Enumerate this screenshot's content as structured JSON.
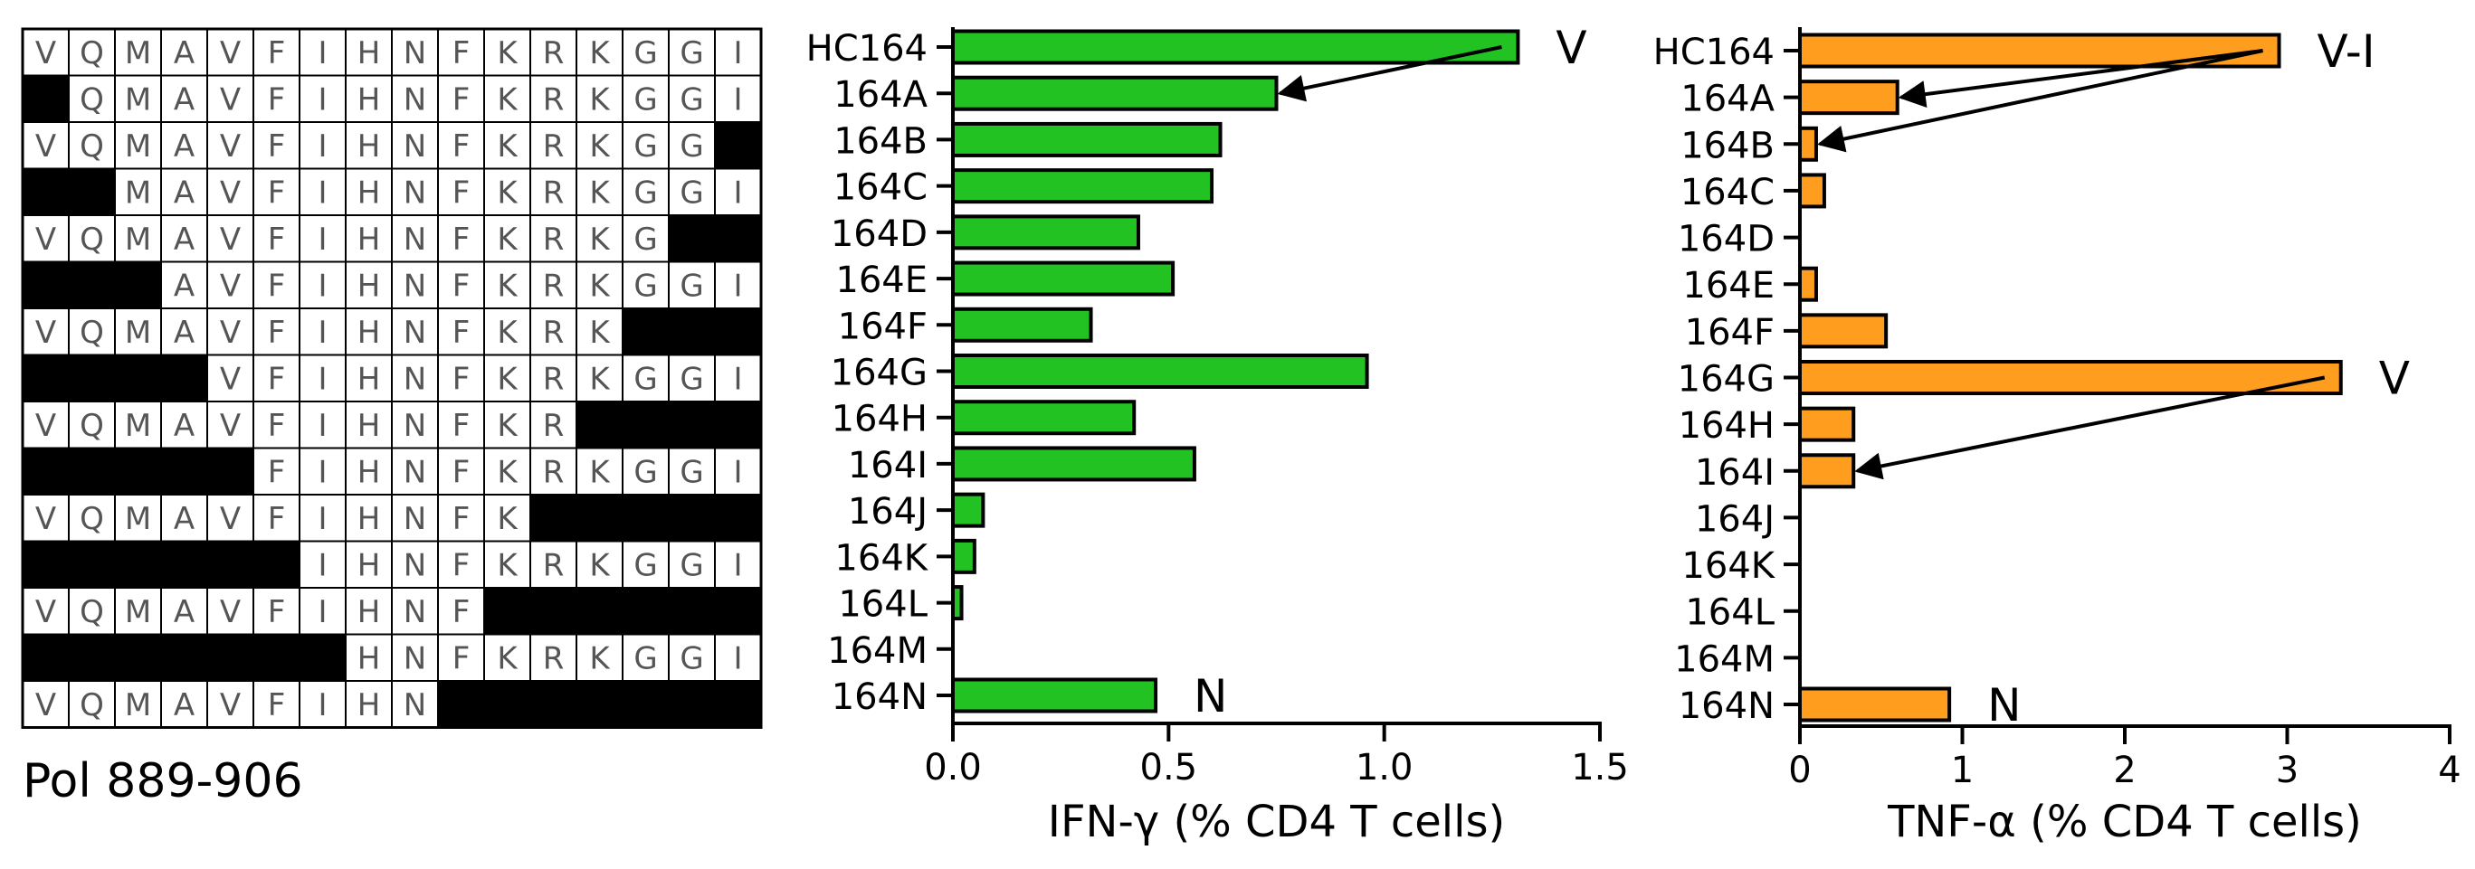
{
  "sequence_grid": {
    "caption": "Pol 889-906",
    "residues": [
      "V",
      "Q",
      "M",
      "A",
      "V",
      "F",
      "I",
      "H",
      "N",
      "F",
      "K",
      "R",
      "K",
      "G",
      "G",
      "I"
    ],
    "peptides": [
      {
        "start": 0,
        "end": 15
      },
      {
        "start": 1,
        "end": 15
      },
      {
        "start": 0,
        "end": 14
      },
      {
        "start": 2,
        "end": 15
      },
      {
        "start": 0,
        "end": 13
      },
      {
        "start": 3,
        "end": 15
      },
      {
        "start": 0,
        "end": 12
      },
      {
        "start": 4,
        "end": 15
      },
      {
        "start": 0,
        "end": 11
      },
      {
        "start": 5,
        "end": 15
      },
      {
        "start": 0,
        "end": 10
      },
      {
        "start": 6,
        "end": 15
      },
      {
        "start": 0,
        "end": 9
      },
      {
        "start": 7,
        "end": 15
      },
      {
        "start": 0,
        "end": 8
      }
    ]
  },
  "chart_data": [
    {
      "type": "bar",
      "orientation": "horizontal",
      "categories": [
        "HC164",
        "164A",
        "164B",
        "164C",
        "164D",
        "164E",
        "164F",
        "164G",
        "164H",
        "164I",
        "164J",
        "164K",
        "164L",
        "164M",
        "164N"
      ],
      "values": [
        1.31,
        0.75,
        0.62,
        0.6,
        0.43,
        0.51,
        0.32,
        0.96,
        0.42,
        0.56,
        0.07,
        0.05,
        0.02,
        0,
        0.47
      ],
      "xlabel": "IFN-γ (% CD4 T cells)",
      "xlim": [
        0,
        1.5
      ],
      "xticks": [
        "0.0",
        "0.5",
        "1.0",
        "1.5"
      ],
      "bar_color": "#22c222",
      "annotations": [
        {
          "text": "V",
          "category": "HC164"
        },
        {
          "text": "N",
          "category": "164N"
        }
      ],
      "arrows": [
        {
          "from": "HC164",
          "to": "164A"
        }
      ]
    },
    {
      "type": "bar",
      "orientation": "horizontal",
      "categories": [
        "HC164",
        "164A",
        "164B",
        "164C",
        "164D",
        "164E",
        "164F",
        "164G",
        "164H",
        "164I",
        "164J",
        "164K",
        "164L",
        "164M",
        "164N"
      ],
      "values": [
        2.95,
        0.6,
        0.1,
        0.15,
        0,
        0.1,
        0.53,
        3.33,
        0.33,
        0.33,
        0,
        0,
        0,
        0,
        0.92
      ],
      "xlabel": "TNF-α (% CD4 T cells)",
      "xlim": [
        0,
        4
      ],
      "xticks": [
        "0",
        "1",
        "2",
        "3",
        "4"
      ],
      "bar_color": "#ff9d1e",
      "annotations": [
        {
          "text": "V-I",
          "category": "HC164"
        },
        {
          "text": "V",
          "category": "164G"
        },
        {
          "text": "N",
          "category": "164N"
        }
      ],
      "arrows": [
        {
          "from": "HC164",
          "to": "164A"
        },
        {
          "from": "HC164",
          "to": "164B"
        },
        {
          "from": "164G",
          "to": "164I"
        }
      ]
    }
  ]
}
